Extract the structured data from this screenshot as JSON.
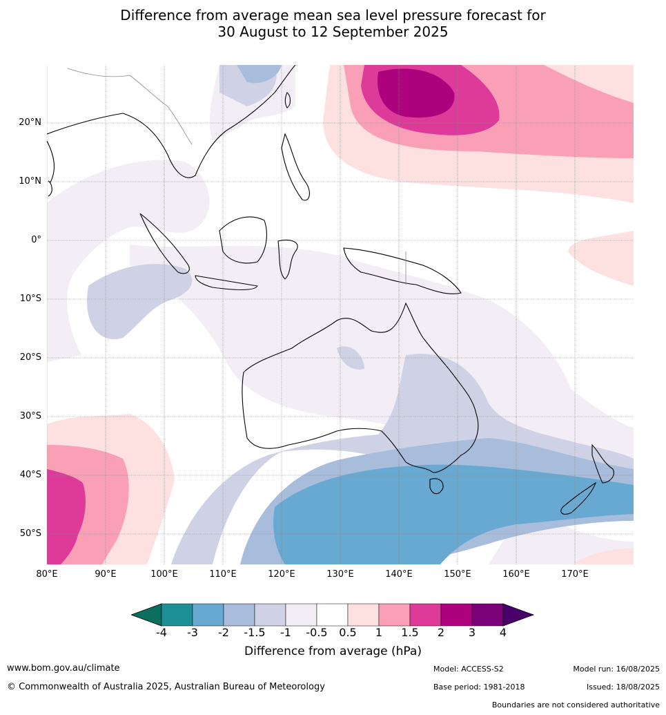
{
  "title": {
    "line1": "Difference from average mean sea level pressure forecast for",
    "line2": "30 August to 12 September 2025"
  },
  "map": {
    "lat_labels": [
      "20°N",
      "10°N",
      "0°",
      "10°S",
      "20°S",
      "30°S",
      "40°S",
      "50°S"
    ],
    "lon_labels": [
      "80°E",
      "90°E",
      "100°E",
      "110°E",
      "120°E",
      "130°E",
      "140°E",
      "150°E",
      "160°E",
      "170°E"
    ],
    "colors": {
      "lt4": "#0b6e5f",
      "m4_m3": "#1f8f97",
      "m3_m2": "#67a9d0",
      "m2_m15": "#a8bcdc",
      "m15_m1": "#cfd2e5",
      "m1_m05": "#f3edf5",
      "neutral": "#ffffff",
      "p05_1": "#fde0e0",
      "p1_15": "#f99fb6",
      "p15_2": "#dd3a9a",
      "p2_3": "#ad017e",
      "p3_4": "#7a0177",
      "gt4": "#4a006a"
    }
  },
  "colorbar": {
    "ticks": [
      "-4",
      "-3",
      "-2",
      "-1.5",
      "-1",
      "-0.5",
      "0.5",
      "1",
      "1.5",
      "2",
      "3",
      "4"
    ],
    "label": "Difference from average (hPa)"
  },
  "footer": {
    "website": "www.bom.gov.au/climate",
    "copyright": "© Commonwealth of Australia 2025, Australian Bureau of Meteorology",
    "model": "Model: ACCESS-S2",
    "base_period": "Base period: 1981-2018",
    "model_run": "Model run: 16/08/2025",
    "issued": "Issued: 18/08/2025",
    "disclaimer": "Boundaries are not considered authoritative"
  }
}
